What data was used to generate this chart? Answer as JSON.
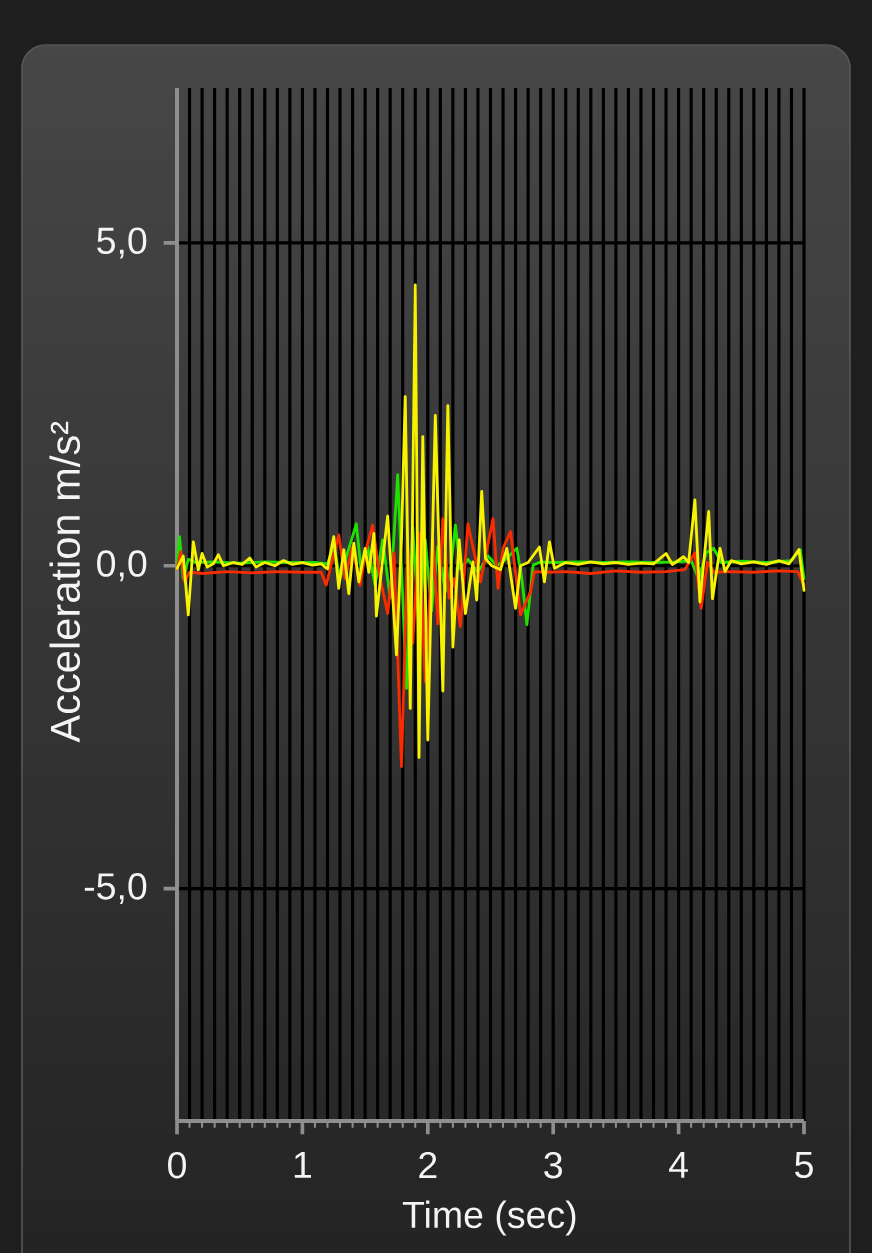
{
  "chart_data": {
    "type": "line",
    "xlabel": "Time (sec)",
    "ylabel": "Acceleration m/s²",
    "xlim": [
      0,
      5
    ],
    "ylim": [
      -8.6,
      7.4
    ],
    "xticks": [
      0,
      {
        "value": 0.1,
        "label": null
      },
      {
        "value": 0.2,
        "label": null
      },
      {
        "value": 0.3,
        "label": null
      },
      {
        "value": 0.4,
        "label": null
      },
      {
        "value": 0.5,
        "label": null
      },
      {
        "value": 0.6,
        "label": null
      },
      {
        "value": 0.7,
        "label": null
      },
      {
        "value": 0.8,
        "label": null
      },
      {
        "value": 0.9,
        "label": null
      },
      1,
      {
        "value": 1.1,
        "label": null
      },
      {
        "value": 1.2,
        "label": null
      },
      {
        "value": 1.3,
        "label": null
      },
      {
        "value": 1.4,
        "label": null
      },
      {
        "value": 1.5,
        "label": null
      },
      {
        "value": 1.6,
        "label": null
      },
      {
        "value": 1.7,
        "label": null
      },
      {
        "value": 1.8,
        "label": null
      },
      {
        "value": 1.9,
        "label": null
      },
      2,
      {
        "value": 2.1,
        "label": null
      },
      {
        "value": 2.2,
        "label": null
      },
      {
        "value": 2.3,
        "label": null
      },
      {
        "value": 2.4,
        "label": null
      },
      {
        "value": 2.5,
        "label": null
      },
      {
        "value": 2.6,
        "label": null
      },
      {
        "value": 2.7,
        "label": null
      },
      {
        "value": 2.8,
        "label": null
      },
      {
        "value": 2.9,
        "label": null
      },
      3,
      {
        "value": 3.1,
        "label": null
      },
      {
        "value": 3.2,
        "label": null
      },
      {
        "value": 3.3,
        "label": null
      },
      {
        "value": 3.4,
        "label": null
      },
      {
        "value": 3.5,
        "label": null
      },
      {
        "value": 3.6,
        "label": null
      },
      {
        "value": 3.7,
        "label": null
      },
      {
        "value": 3.8,
        "label": null
      },
      {
        "value": 3.9,
        "label": null
      },
      4,
      {
        "value": 4.1,
        "label": null
      },
      {
        "value": 4.2,
        "label": null
      },
      {
        "value": 4.3,
        "label": null
      },
      {
        "value": 4.4,
        "label": null
      },
      {
        "value": 4.5,
        "label": null
      },
      {
        "value": 4.6,
        "label": null
      },
      {
        "value": 4.7,
        "label": null
      },
      {
        "value": 4.8,
        "label": null
      },
      {
        "value": 4.9,
        "label": null
      },
      5
    ],
    "yticks": [
      {
        "value": -5,
        "label": "-5,0"
      },
      {
        "value": 0,
        "label": "0,0"
      },
      {
        "value": 5,
        "label": "5,0"
      }
    ],
    "grid": true,
    "line_style": "solid",
    "series": [
      {
        "color": "#1fe000",
        "x": [
          0.0,
          0.02,
          0.05,
          0.09,
          0.15,
          0.3,
          0.5,
          0.7,
          0.9,
          1.1,
          1.2,
          1.25,
          1.3,
          1.36,
          1.43,
          1.47,
          1.52,
          1.58,
          1.64,
          1.7,
          1.76,
          1.83,
          1.88,
          1.93,
          1.98,
          2.03,
          2.08,
          2.14,
          2.18,
          2.22,
          2.26,
          2.32,
          2.4,
          2.48,
          2.55,
          2.62,
          2.71,
          2.75,
          2.79,
          2.84,
          2.9,
          3.0,
          3.2,
          3.4,
          3.6,
          3.8,
          4.0,
          4.1,
          4.16,
          4.22,
          4.28,
          4.34,
          4.5,
          4.7,
          4.9,
          4.97,
          5.0
        ],
        "values": [
          0.05,
          0.45,
          -0.2,
          0.1,
          0.05,
          0.06,
          0.04,
          0.06,
          0.05,
          0.05,
          0.03,
          0.3,
          -0.2,
          0.2,
          0.65,
          -0.1,
          0.3,
          -0.3,
          0.4,
          -0.5,
          1.41,
          -1.9,
          0.6,
          -1.0,
          0.4,
          -0.7,
          0.3,
          -0.4,
          -0.1,
          0.63,
          -0.05,
          0.1,
          -0.1,
          0.15,
          0.0,
          0.1,
          0.27,
          -0.2,
          -0.91,
          0.01,
          0.06,
          0.05,
          0.06,
          0.05,
          0.06,
          0.05,
          0.06,
          0.08,
          -0.2,
          0.2,
          0.27,
          0.05,
          0.07,
          0.05,
          0.08,
          0.25,
          -0.2
        ]
      },
      {
        "color": "#f82c00",
        "x": [
          0.0,
          0.03,
          0.06,
          0.1,
          0.2,
          0.4,
          0.6,
          0.8,
          1.0,
          1.15,
          1.19,
          1.24,
          1.29,
          1.34,
          1.4,
          1.46,
          1.5,
          1.56,
          1.62,
          1.68,
          1.73,
          1.76,
          1.79,
          1.84,
          1.88,
          1.93,
          1.98,
          2.04,
          2.08,
          2.12,
          2.17,
          2.21,
          2.26,
          2.32,
          2.42,
          2.52,
          2.56,
          2.6,
          2.66,
          2.74,
          2.82,
          2.85,
          2.95,
          3.1,
          3.3,
          3.5,
          3.7,
          3.9,
          4.05,
          4.13,
          4.18,
          4.23,
          4.28,
          4.4,
          4.6,
          4.8,
          4.95,
          5.0
        ],
        "values": [
          -0.05,
          0.22,
          -0.25,
          -0.1,
          -0.12,
          -0.09,
          -0.11,
          -0.09,
          -0.1,
          -0.1,
          -0.3,
          0.1,
          0.48,
          -0.2,
          0.3,
          -0.3,
          0.2,
          0.63,
          -0.2,
          -0.74,
          0.2,
          -1.4,
          -3.11,
          0.3,
          -1.2,
          0.5,
          -1.8,
          0.4,
          -0.9,
          0.73,
          -0.5,
          -0.2,
          -0.94,
          0.65,
          -0.25,
          0.73,
          -0.35,
          0.27,
          0.53,
          -0.76,
          -0.4,
          -0.09,
          -0.1,
          -0.09,
          -0.12,
          -0.08,
          -0.1,
          -0.09,
          -0.06,
          0.2,
          -0.66,
          0.05,
          -0.1,
          -0.09,
          -0.1,
          -0.08,
          -0.09,
          -0.3
        ]
      },
      {
        "color": "#f7f200",
        "x": [
          0.0,
          0.05,
          0.09,
          0.13,
          0.17,
          0.2,
          0.24,
          0.29,
          0.33,
          0.37,
          0.45,
          0.52,
          0.58,
          0.63,
          0.7,
          0.78,
          0.85,
          0.92,
          1.0,
          1.08,
          1.15,
          1.2,
          1.25,
          1.29,
          1.33,
          1.37,
          1.41,
          1.45,
          1.5,
          1.53,
          1.57,
          1.59,
          1.64,
          1.68,
          1.75,
          1.79,
          1.82,
          1.86,
          1.9,
          1.93,
          1.96,
          2.0,
          2.06,
          2.12,
          2.16,
          2.2,
          2.25,
          2.3,
          2.36,
          2.39,
          2.43,
          2.46,
          2.51,
          2.58,
          2.63,
          2.7,
          2.74,
          2.8,
          2.89,
          2.93,
          2.97,
          3.01,
          3.1,
          3.2,
          3.3,
          3.4,
          3.5,
          3.6,
          3.7,
          3.8,
          3.9,
          3.95,
          4.04,
          4.08,
          4.13,
          4.17,
          4.24,
          4.27,
          4.33,
          4.37,
          4.42,
          4.5,
          4.6,
          4.7,
          4.8,
          4.88,
          4.96,
          5.0
        ],
        "values": [
          -0.04,
          0.15,
          -0.76,
          0.37,
          -0.06,
          0.19,
          -0.02,
          0.03,
          0.17,
          0.0,
          0.05,
          0.02,
          0.12,
          -0.02,
          0.05,
          0.0,
          0.08,
          0.02,
          0.05,
          0.01,
          0.03,
          -0.05,
          0.45,
          -0.35,
          0.25,
          -0.43,
          0.35,
          -0.25,
          0.27,
          -0.1,
          0.5,
          -0.78,
          0.1,
          0.77,
          -1.38,
          0.4,
          2.62,
          -2.21,
          4.35,
          -2.97,
          2.0,
          -2.7,
          2.33,
          -1.94,
          2.48,
          -1.26,
          0.4,
          -0.74,
          0.06,
          -0.53,
          1.15,
          0.11,
          0.0,
          -0.06,
          0.27,
          -0.66,
          0.0,
          0.05,
          0.29,
          -0.25,
          0.37,
          -0.04,
          0.05,
          0.02,
          0.06,
          0.03,
          0.05,
          0.02,
          0.04,
          0.03,
          0.19,
          0.02,
          0.14,
          0.05,
          1.02,
          -0.56,
          0.84,
          -0.51,
          0.27,
          -0.09,
          0.08,
          0.03,
          0.06,
          0.02,
          0.08,
          0.03,
          0.25,
          -0.38
        ]
      }
    ]
  }
}
